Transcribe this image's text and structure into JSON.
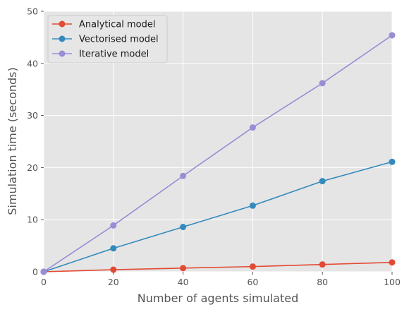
{
  "chart_data": {
    "type": "line",
    "title": "",
    "xlabel": "Number of agents simulated",
    "ylabel": "Simulation time (seconds)",
    "xlim": [
      0,
      100
    ],
    "ylim": [
      0,
      50
    ],
    "xticks": [
      "0",
      "20",
      "40",
      "60",
      "80",
      "100"
    ],
    "yticks": [
      "0",
      "10",
      "20",
      "30",
      "40",
      "50"
    ],
    "grid": true,
    "legend_position": "top-left",
    "x": [
      0,
      20,
      40,
      60,
      80,
      100
    ],
    "series": [
      {
        "name": "Analytical model",
        "color": "#E24A33",
        "values": [
          0,
          0.4,
          0.7,
          1.0,
          1.4,
          1.8
        ]
      },
      {
        "name": "Vectorised model",
        "color": "#348ABD",
        "values": [
          0,
          4.5,
          8.6,
          12.7,
          17.4,
          21.1
        ]
      },
      {
        "name": "Iterative model",
        "color": "#988ED5",
        "values": [
          0,
          8.9,
          18.4,
          27.7,
          36.2,
          45.4
        ]
      }
    ]
  }
}
